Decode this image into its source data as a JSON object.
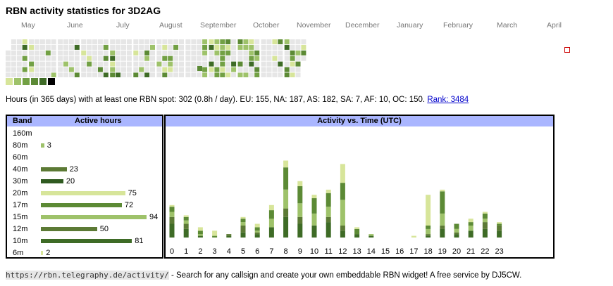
{
  "page": {
    "title": "RBN activity statistics for 3D2AG"
  },
  "calendar": {
    "months": [
      "May",
      "June",
      "July",
      "August",
      "September",
      "October",
      "November",
      "December",
      "January",
      "February",
      "March",
      "April"
    ],
    "colors": {
      "empty": "#e6e6e6",
      "l1": "#d7e59a",
      "l2": "#9ec26a",
      "l3": "#72a044",
      "l4": "#5c8a35",
      "l5": "#3e6b26",
      "l6": "#000000",
      "today_border": "#cc0000"
    }
  },
  "summary": {
    "text": "Hours (in 365 days) with at least one RBN spot: 302 (0.8h / day). EU: 155, NA: 187, AS: 182, SA: 7, AF: 10, OC: 150.",
    "rank_link": "Rank: 3484"
  },
  "bands": {
    "header_band": "Band",
    "header_hours": "Active hours",
    "bar_color": "#5c8a35",
    "rows": [
      {
        "band": "160m",
        "hours": 0,
        "color": "#5c8a35"
      },
      {
        "band": "80m",
        "hours": 3,
        "color": "#9ec26a"
      },
      {
        "band": "60m",
        "hours": 0,
        "color": "#5c8a35"
      },
      {
        "band": "40m",
        "hours": 23,
        "color": "#5c7a35"
      },
      {
        "band": "30m",
        "hours": 20,
        "color": "#2f5a20"
      },
      {
        "band": "20m",
        "hours": 75,
        "color": "#d7e59a"
      },
      {
        "band": "17m",
        "hours": 72,
        "color": "#5c8a35"
      },
      {
        "band": "15m",
        "hours": 94,
        "color": "#9ec26a"
      },
      {
        "band": "12m",
        "hours": 50,
        "color": "#5c7a35"
      },
      {
        "band": "10m",
        "hours": 81,
        "color": "#3e6b26"
      },
      {
        "band": "6m",
        "hours": 2,
        "color": "#d7e59a"
      }
    ]
  },
  "chart_data": {
    "type": "bar",
    "title": "Activity vs. Time (UTC)",
    "categories": [
      "0",
      "1",
      "2",
      "3",
      "4",
      "5",
      "6",
      "7",
      "8",
      "9",
      "10",
      "11",
      "12",
      "13",
      "14",
      "15",
      "16",
      "17",
      "18",
      "19",
      "20",
      "21",
      "22",
      "23"
    ],
    "series": [
      {
        "name": "10m",
        "color": "#3e6b26",
        "values": [
          8,
          5,
          1,
          0,
          1,
          3,
          2,
          6,
          12,
          8,
          7,
          9,
          4,
          2,
          1,
          0,
          0,
          0,
          1,
          5,
          2,
          4,
          5,
          4
        ]
      },
      {
        "name": "12m",
        "color": "#5c7a35",
        "values": [
          4,
          3,
          0,
          0,
          1,
          4,
          1,
          0,
          5,
          4,
          0,
          3,
          3,
          0,
          0,
          0,
          0,
          0,
          1,
          2,
          1,
          0,
          4,
          3
        ]
      },
      {
        "name": "15m",
        "color": "#9ec26a",
        "values": [
          3,
          2,
          1,
          0,
          0,
          2,
          1,
          5,
          11,
          8,
          7,
          6,
          15,
          0,
          1,
          0,
          0,
          0,
          3,
          7,
          2,
          3,
          2,
          0
        ]
      },
      {
        "name": "17m",
        "color": "#5c8a35",
        "values": [
          3,
          2,
          2,
          1,
          0,
          2,
          2,
          5,
          13,
          10,
          9,
          8,
          10,
          3,
          0,
          0,
          0,
          0,
          2,
          13,
          3,
          2,
          3,
          1
        ]
      },
      {
        "name": "20m",
        "color": "#d7e59a",
        "values": [
          1,
          1,
          2,
          3,
          0,
          1,
          2,
          3,
          4,
          3,
          2,
          2,
          11,
          1,
          0,
          0,
          0,
          1,
          18,
          1,
          0,
          2,
          1,
          1
        ]
      }
    ],
    "ylim": [
      0,
      60
    ]
  },
  "footer": {
    "url": "https://rbn.telegraphy.de/activity/",
    "text": " - Search for any callsign and create your own embeddable RBN widget! A free service by DJ5CW."
  }
}
